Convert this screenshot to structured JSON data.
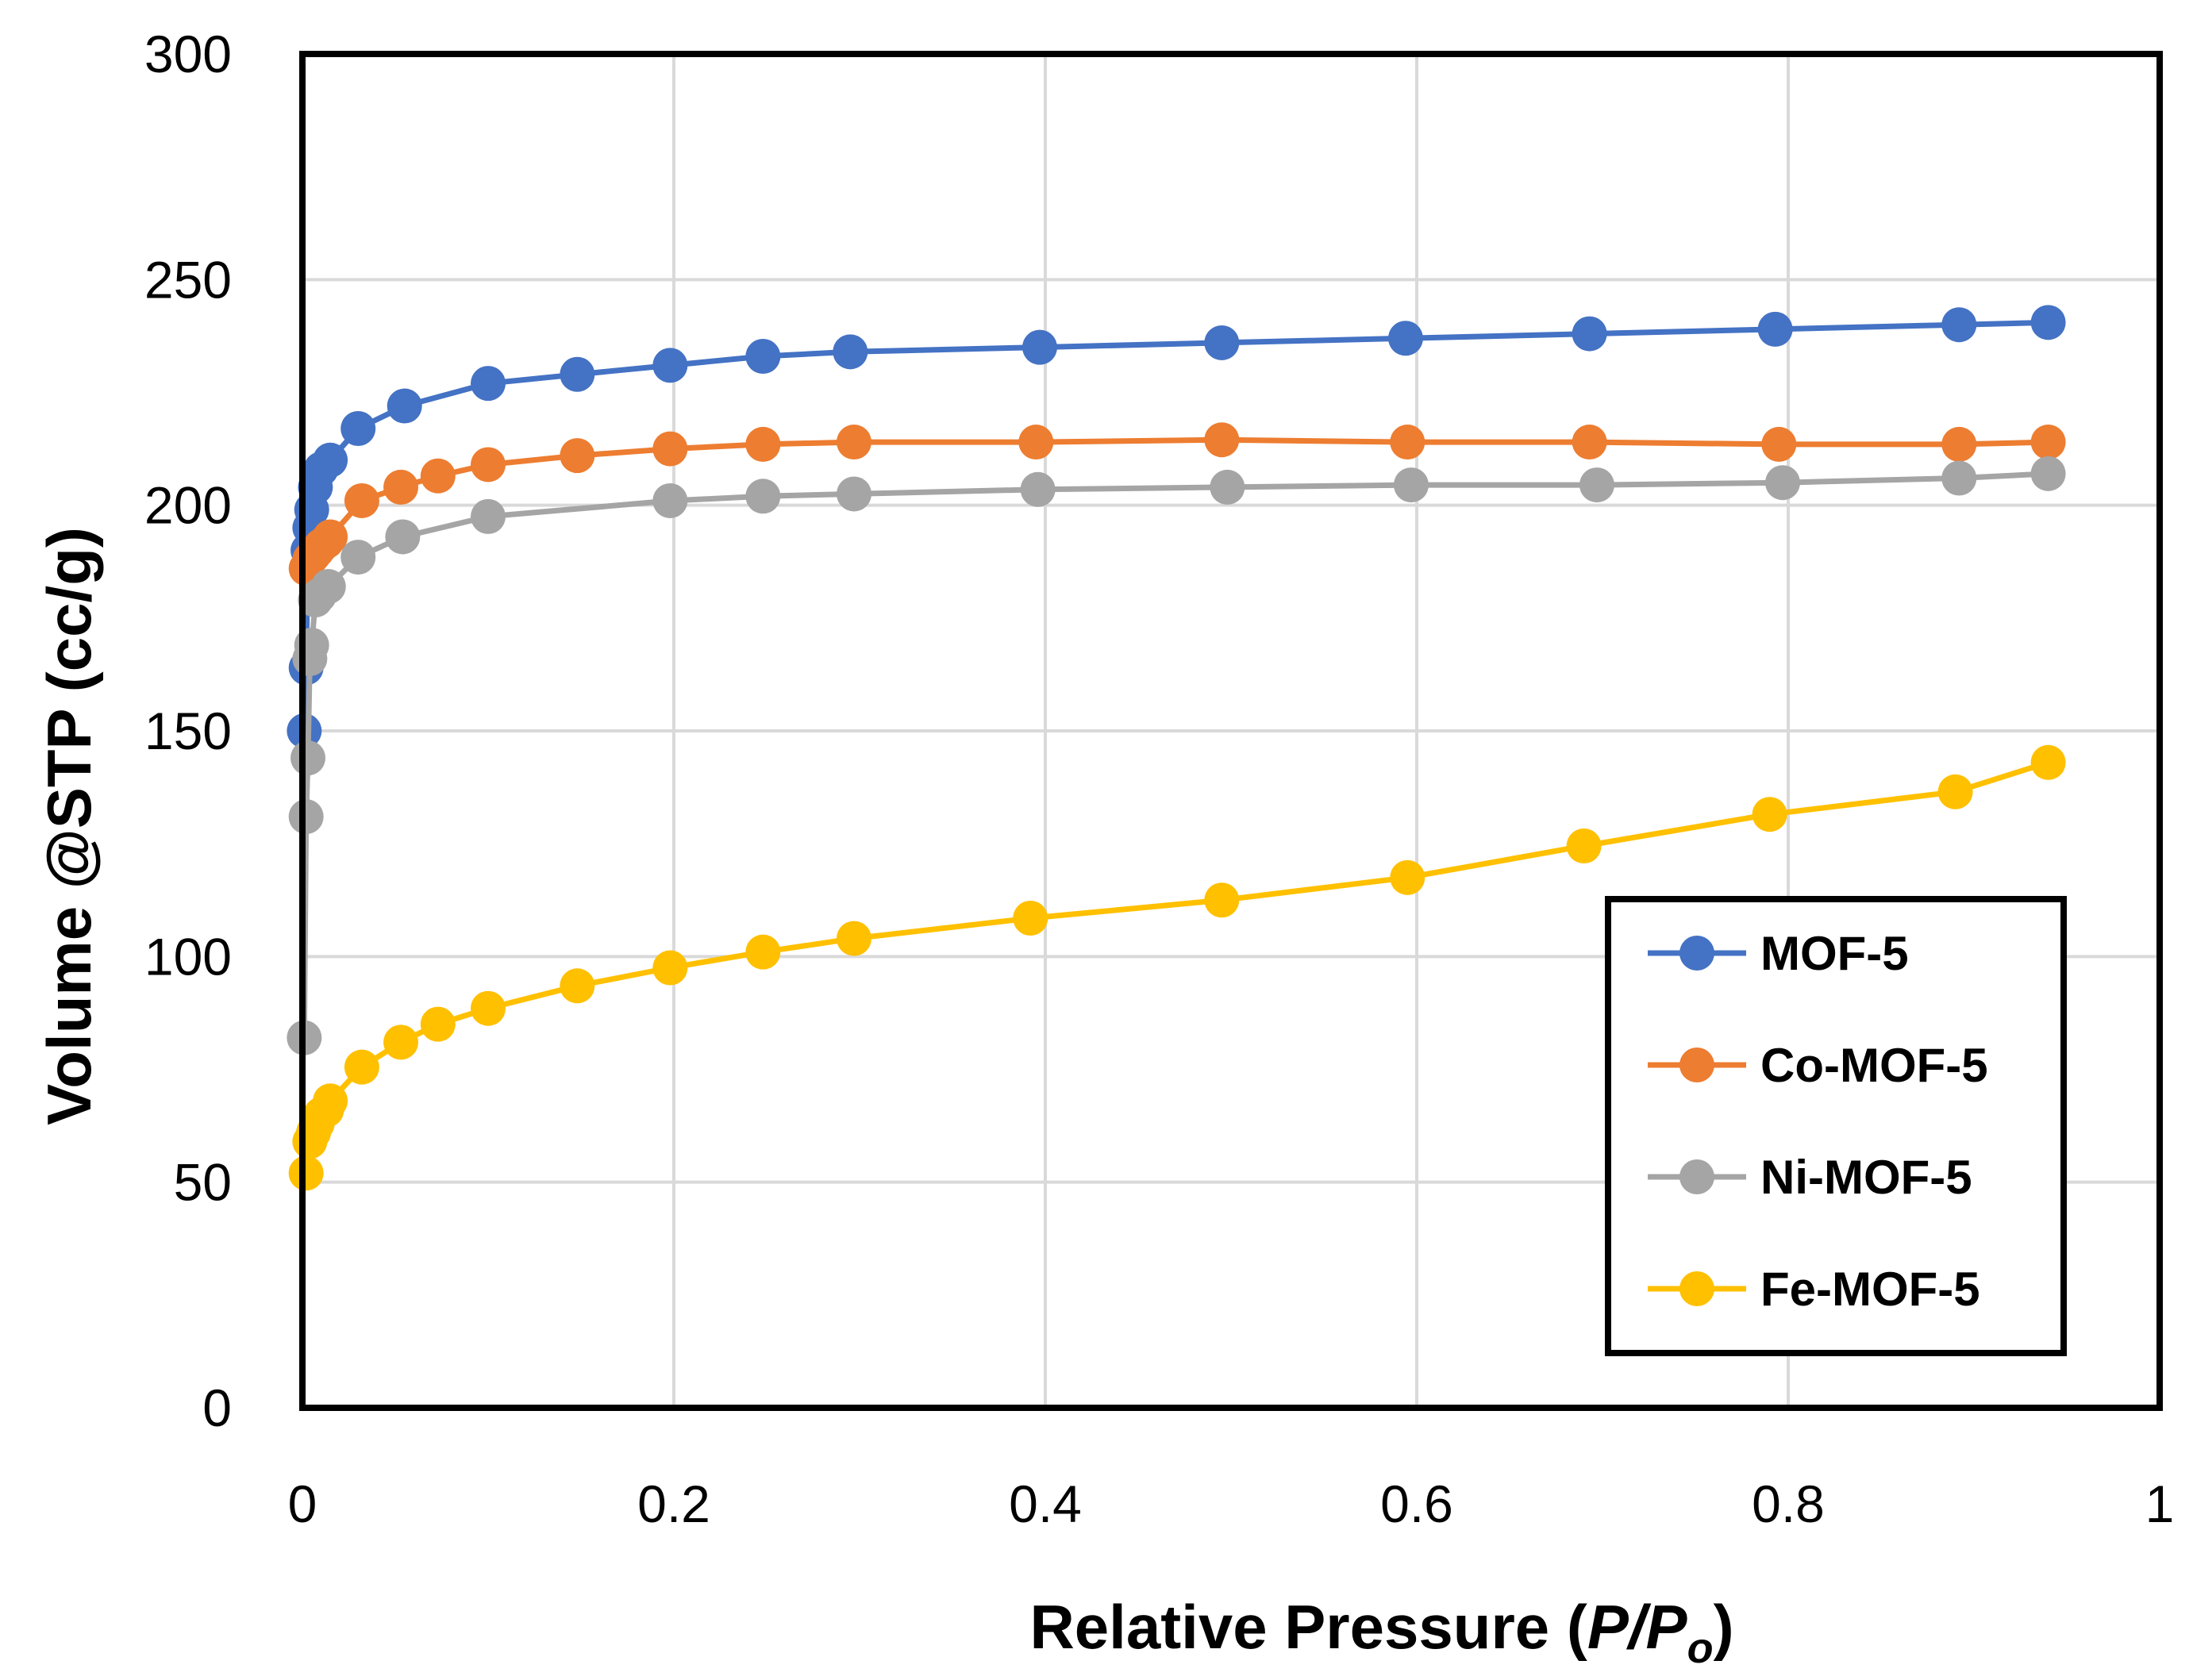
{
  "chart_data": {
    "type": "scatter",
    "title": "",
    "xlabel_prefix": "Relative Pressure (",
    "xlabel_italic": "P/P",
    "xlabel_subscript": "o",
    "xlabel_suffix": ")",
    "ylabel": "Volume @STP (cc/g)",
    "xlim": [
      0,
      1
    ],
    "ylim": [
      0,
      300
    ],
    "xticks": [
      0,
      0.2,
      0.4,
      0.6,
      0.8,
      1
    ],
    "xtick_labels": [
      "0",
      "0.2",
      "0.4",
      "0.6",
      "0.8",
      "1"
    ],
    "yticks": [
      0,
      50,
      100,
      150,
      200,
      250,
      300
    ],
    "ytick_labels": [
      "0",
      "50",
      "100",
      "150",
      "200",
      "250",
      "300"
    ],
    "grid": true,
    "legend_position": "right",
    "series": [
      {
        "name": "MOF-5",
        "color": "#4472C4",
        "x": [
          0.001,
          0.002,
          0.003,
          0.004,
          0.005,
          0.007,
          0.01,
          0.015,
          0.03,
          0.055,
          0.1,
          0.148,
          0.198,
          0.248,
          0.295,
          0.397,
          0.495,
          0.594,
          0.693,
          0.793,
          0.892,
          0.94
        ],
        "y": [
          150,
          164,
          190,
          195,
          199,
          204,
          208,
          210,
          217,
          222,
          227,
          229,
          231,
          233,
          234,
          235,
          236,
          237,
          238,
          239,
          240,
          240.5
        ]
      },
      {
        "name": "Co-MOF-5",
        "color": "#ED7D31",
        "x": [
          0.002,
          0.004,
          0.006,
          0.008,
          0.01,
          0.013,
          0.015,
          0.032,
          0.053,
          0.073,
          0.1,
          0.148,
          0.198,
          0.248,
          0.297,
          0.395,
          0.495,
          0.595,
          0.693,
          0.795,
          0.892,
          0.94
        ],
        "y": [
          186,
          188,
          189,
          190,
          191,
          192,
          193,
          201,
          204,
          206.5,
          209,
          211,
          212.5,
          213.5,
          214,
          214,
          214.5,
          214,
          214,
          213.5,
          213.5,
          214
        ]
      },
      {
        "name": "Ni-MOF-5",
        "color": "#A5A5A5",
        "x": [
          0.001,
          0.002,
          0.003,
          0.004,
          0.005,
          0.007,
          0.009,
          0.014,
          0.03,
          0.054,
          0.1,
          0.198,
          0.248,
          0.297,
          0.396,
          0.498,
          0.597,
          0.697,
          0.797,
          0.892,
          0.94
        ],
        "y": [
          82,
          131,
          144,
          166,
          169,
          179,
          180,
          182,
          188.5,
          193,
          197.5,
          201,
          202,
          202.5,
          203.5,
          204,
          204.5,
          204.5,
          205,
          206,
          207
        ]
      },
      {
        "name": "Fe-MOF-5",
        "color": "#FFC000",
        "x": [
          0.002,
          0.004,
          0.006,
          0.008,
          0.01,
          0.013,
          0.015,
          0.032,
          0.053,
          0.073,
          0.1,
          0.148,
          0.198,
          0.248,
          0.297,
          0.392,
          0.495,
          0.595,
          0.69,
          0.79,
          0.89,
          0.94
        ],
        "y": [
          52,
          59,
          61,
          63,
          65,
          66,
          68,
          75.5,
          81,
          85,
          88.5,
          93.5,
          97.5,
          101,
          104,
          108.5,
          112.5,
          117.5,
          124.5,
          131.5,
          136.5,
          143
        ]
      }
    ]
  }
}
